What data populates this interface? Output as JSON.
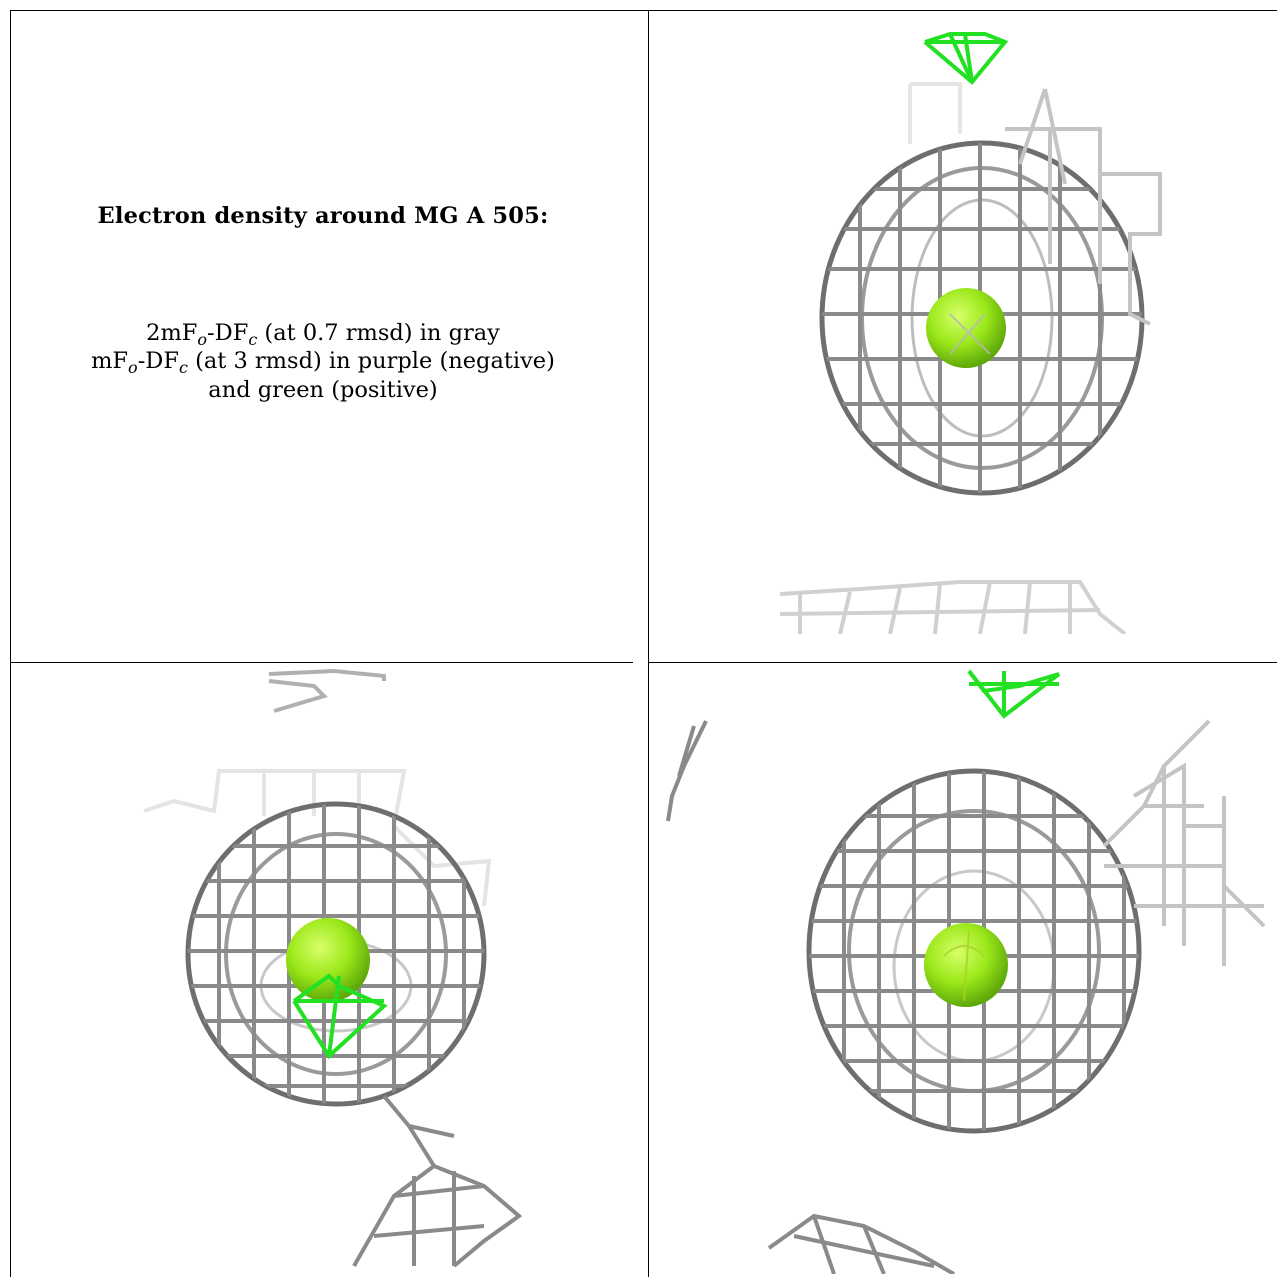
{
  "caption": {
    "title": "Electron density around MG A 505:",
    "line1_pre": "2mF",
    "line1_sub1": "o",
    "line1_mid": "-DF",
    "line1_sub2": "c",
    "line1_post": " (at 0.7 rmsd) in gray",
    "line2_pre": "mF",
    "line2_sub1": "o",
    "line2_mid": "-DF",
    "line2_sub2": "c",
    "line2_post": " (at 3 rmsd) in purple (negative)",
    "line3": "and green (positive)"
  },
  "colors": {
    "mesh_dark": "#6e6e6e",
    "mesh_light": "#cfcfcf",
    "positive_density": "#22e022",
    "magnesium_ion": "#9be81a",
    "rule": "#000000"
  },
  "views": [
    "view-1",
    "view-2",
    "view-3"
  ]
}
